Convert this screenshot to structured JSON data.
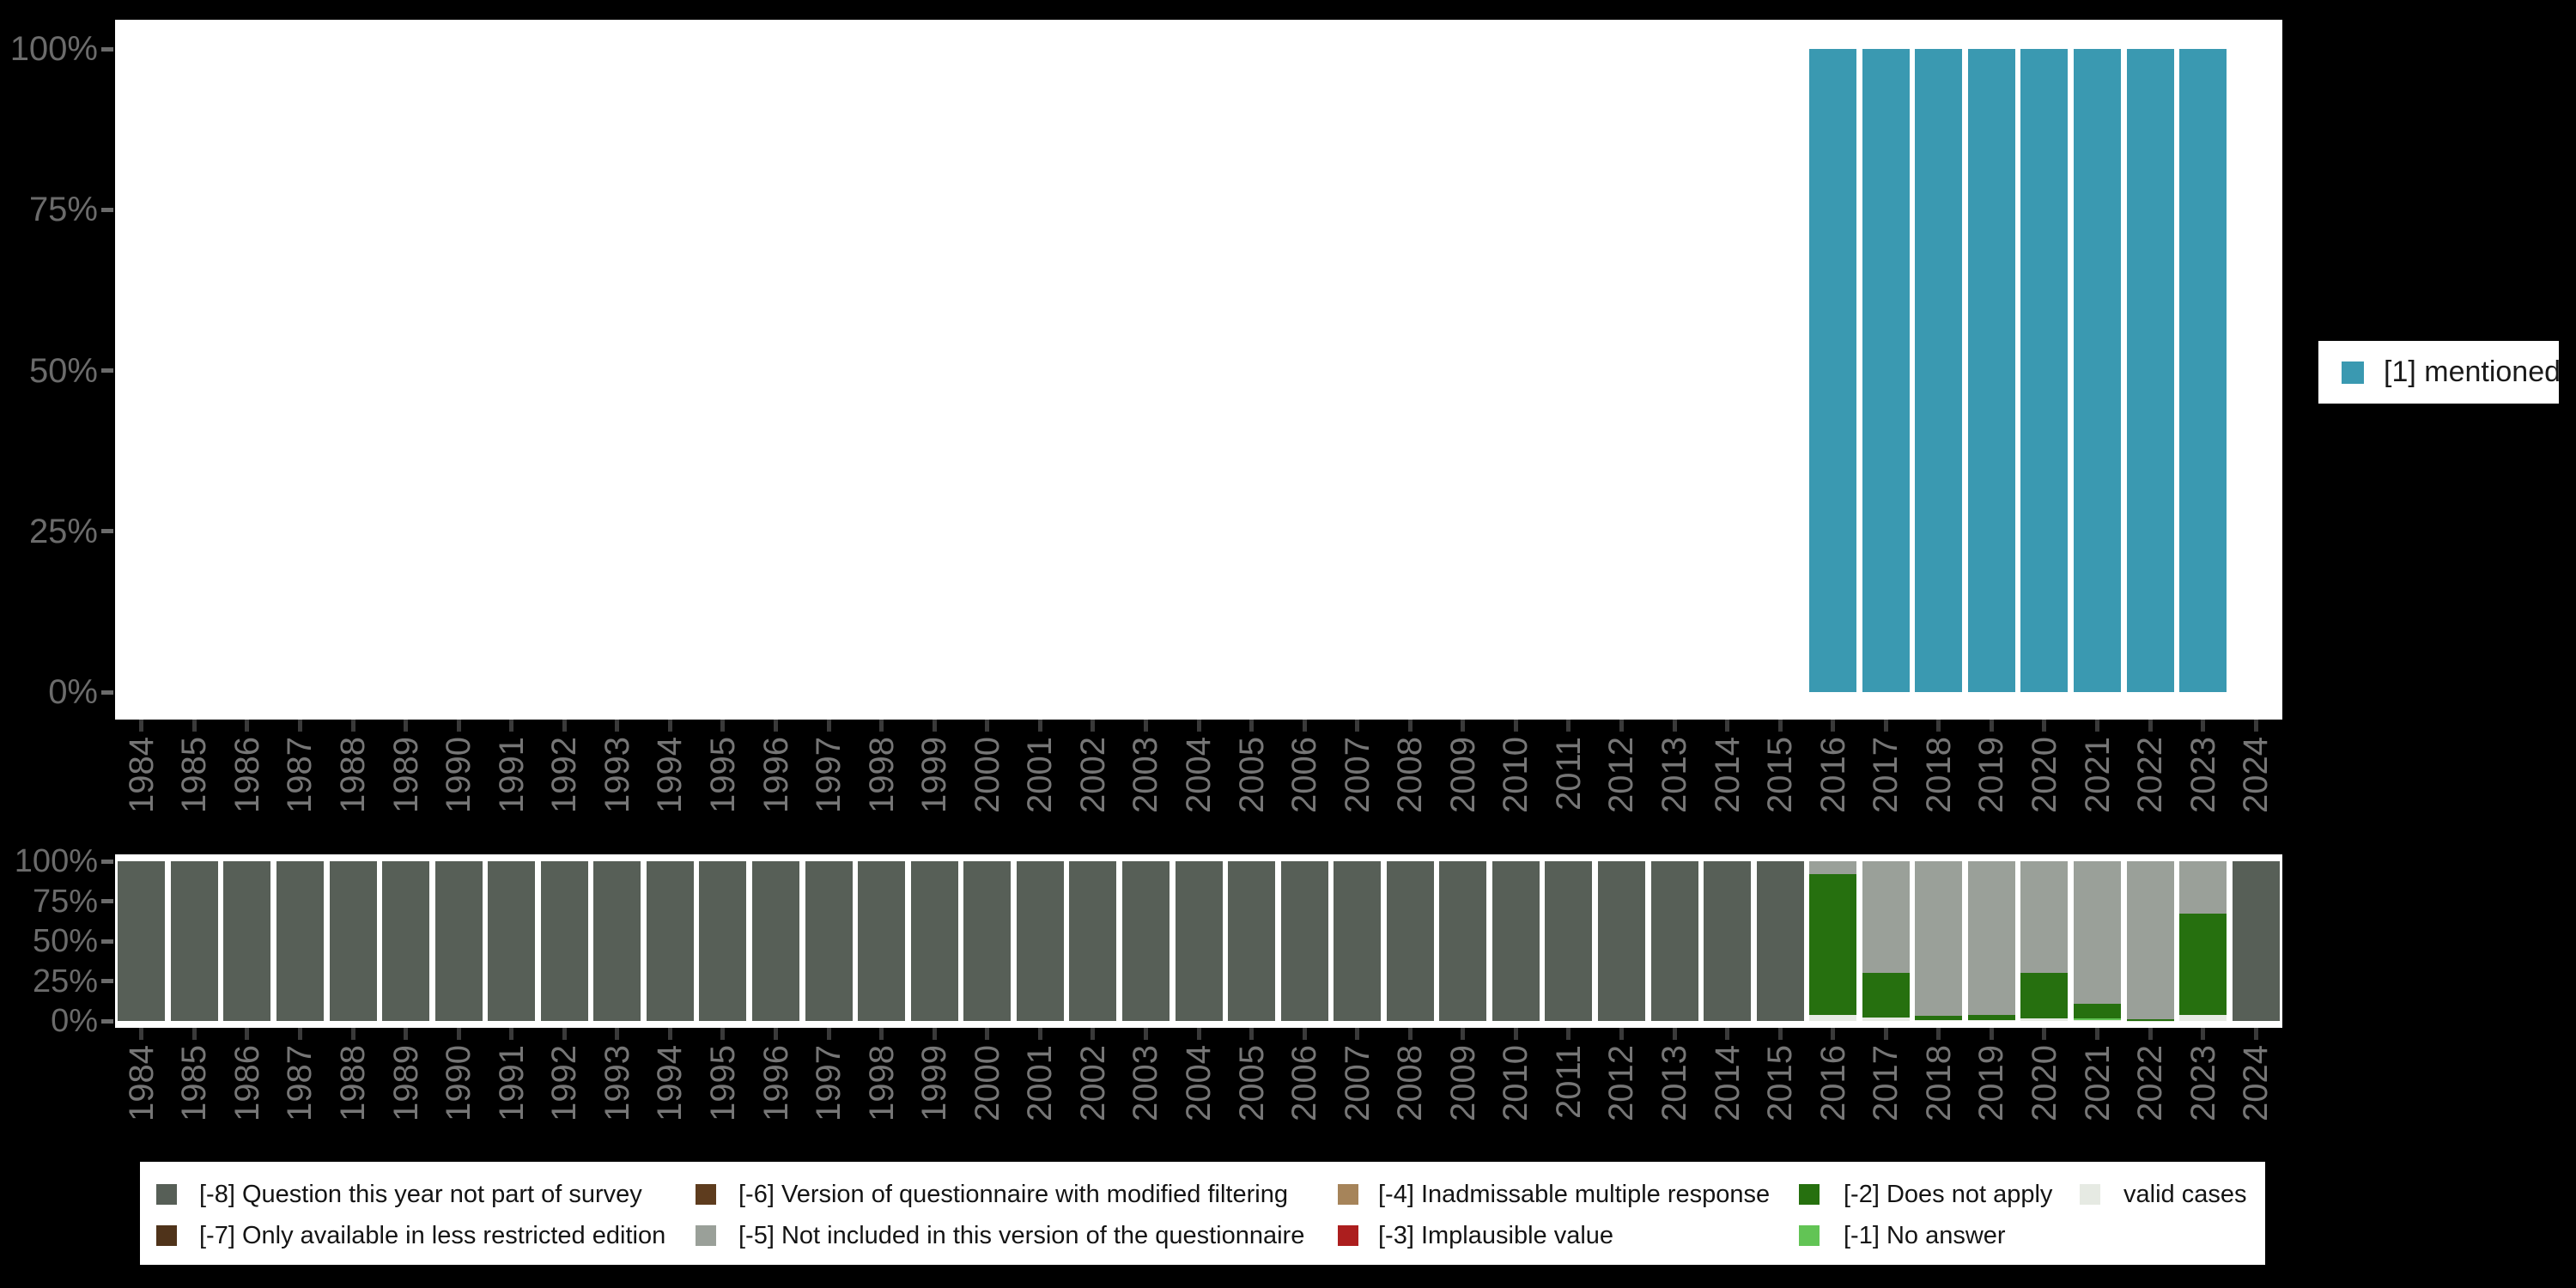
{
  "top_legend": {
    "label": "[1] mentioned",
    "color": "#3a99b1"
  },
  "colors": {
    "background": "#000000",
    "panel": "#ffffff",
    "mentioned": "#3a99b1",
    "not_part_of_survey": "#575f57",
    "less_restricted_edition": "#4f331a",
    "modified_filtering": "#5e3c1e",
    "not_in_questionnaire_version": "#9aa099",
    "inadmissable_multiple_response": "#a6845a",
    "implausible_value": "#ac1e1e",
    "does_not_apply": "#26700f",
    "no_answer": "#62c455",
    "valid_cases": "#e6eae3",
    "y_axis_text": "#6b6b6b",
    "x_axis_text": "#767676"
  },
  "missing_legend": {
    "items": [
      {
        "label": "[-8] Question this year not part of survey",
        "color": "#575f57"
      },
      {
        "label": "[-7] Only available in less restricted edition",
        "color": "#4f331a"
      },
      {
        "label": "[-6] Version of questionnaire with modified filtering",
        "color": "#5e3c1e"
      },
      {
        "label": "[-5] Not included in this version of the questionnaire",
        "color": "#9aa099"
      },
      {
        "label": "[-4] Inadmissable multiple response",
        "color": "#a6845a"
      },
      {
        "label": "[-3] Implausible value",
        "color": "#ac1e1e"
      },
      {
        "label": "[-2] Does not apply",
        "color": "#26700f"
      },
      {
        "label": "[-1] No answer",
        "color": "#62c455"
      },
      {
        "label": "valid cases",
        "color": "#e6eae3"
      }
    ]
  },
  "chart_data": [
    {
      "type": "bar",
      "title": "",
      "xlabel": "",
      "ylabel": "",
      "ylim": [
        0,
        100
      ],
      "grid": false,
      "legend_position": "right",
      "y_tick_labels": [
        "100%",
        "75%",
        "50%",
        "25%",
        "0%"
      ],
      "categories": [
        "1984",
        "1985",
        "1986",
        "1987",
        "1988",
        "1989",
        "1990",
        "1991",
        "1992",
        "1993",
        "1994",
        "1995",
        "1996",
        "1997",
        "1998",
        "1999",
        "2000",
        "2001",
        "2002",
        "2003",
        "2004",
        "2005",
        "2006",
        "2007",
        "2008",
        "2009",
        "2010",
        "2011",
        "2012",
        "2013",
        "2014",
        "2015",
        "2016",
        "2017",
        "2018",
        "2019",
        "2020",
        "2021",
        "2022",
        "2023",
        "2024"
      ],
      "series": [
        {
          "name": "[1] mentioned",
          "color": "#3a99b1",
          "values": [
            0,
            0,
            0,
            0,
            0,
            0,
            0,
            0,
            0,
            0,
            0,
            0,
            0,
            0,
            0,
            0,
            0,
            0,
            0,
            0,
            0,
            0,
            0,
            0,
            0,
            0,
            0,
            0,
            0,
            0,
            0,
            0,
            100,
            100,
            100,
            100,
            100,
            100,
            100,
            100,
            0
          ]
        }
      ]
    },
    {
      "type": "bar",
      "stacked": true,
      "title": "",
      "xlabel": "",
      "ylabel": "",
      "ylim": [
        0,
        100
      ],
      "grid": false,
      "y_tick_labels": [
        "100%",
        "75%",
        "50%",
        "25%",
        "0%"
      ],
      "categories": [
        "1984",
        "1985",
        "1986",
        "1987",
        "1988",
        "1989",
        "1990",
        "1991",
        "1992",
        "1993",
        "1994",
        "1995",
        "1996",
        "1997",
        "1998",
        "1999",
        "2000",
        "2001",
        "2002",
        "2003",
        "2004",
        "2005",
        "2006",
        "2007",
        "2008",
        "2009",
        "2010",
        "2011",
        "2012",
        "2013",
        "2014",
        "2015",
        "2016",
        "2017",
        "2018",
        "2019",
        "2020",
        "2021",
        "2022",
        "2023",
        "2024"
      ],
      "series": [
        {
          "name": "valid cases",
          "color": "#e6eae3",
          "values": [
            0,
            0,
            0,
            0,
            0,
            0,
            0,
            0,
            0,
            0,
            0,
            0,
            0,
            0,
            0,
            0,
            0,
            0,
            0,
            0,
            0,
            0,
            0,
            0,
            0,
            0,
            0,
            0,
            0,
            0,
            0,
            0,
            4,
            2,
            0.5,
            0.5,
            1.5,
            0.5,
            0.2,
            4,
            0
          ]
        },
        {
          "name": "[-1] No answer",
          "color": "#62c455",
          "values": [
            0,
            0,
            0,
            0,
            0,
            0,
            0,
            0,
            0,
            0,
            0,
            0,
            0,
            0,
            0,
            0,
            0,
            0,
            0,
            0,
            0,
            0,
            0,
            0,
            0,
            0,
            0,
            0,
            0,
            0,
            0,
            0,
            0,
            0,
            0,
            0,
            0,
            1,
            0,
            0,
            0
          ]
        },
        {
          "name": "[-2] Does not apply",
          "color": "#26700f",
          "values": [
            0,
            0,
            0,
            0,
            0,
            0,
            0,
            0,
            0,
            0,
            0,
            0,
            0,
            0,
            0,
            0,
            0,
            0,
            0,
            0,
            0,
            0,
            0,
            0,
            0,
            0,
            0,
            0,
            0,
            0,
            0,
            0,
            88,
            28,
            2.5,
            3.5,
            28.5,
            9,
            1,
            63,
            0
          ]
        },
        {
          "name": "[-5] Not included in this version of the questionnaire",
          "color": "#9aa099",
          "values": [
            0,
            0,
            0,
            0,
            0,
            0,
            0,
            0,
            0,
            0,
            0,
            0,
            0,
            0,
            0,
            0,
            0,
            0,
            0,
            0,
            0,
            0,
            0,
            0,
            0,
            0,
            0,
            0,
            0,
            0,
            0,
            0,
            8,
            70,
            97,
            96,
            70,
            89.5,
            98.8,
            33,
            0
          ]
        },
        {
          "name": "[-8] Question this year not part of survey",
          "color": "#575f57",
          "values": [
            100,
            100,
            100,
            100,
            100,
            100,
            100,
            100,
            100,
            100,
            100,
            100,
            100,
            100,
            100,
            100,
            100,
            100,
            100,
            100,
            100,
            100,
            100,
            100,
            100,
            100,
            100,
            100,
            100,
            100,
            100,
            100,
            0,
            0,
            0,
            0,
            0,
            0,
            0,
            0,
            100
          ]
        }
      ]
    }
  ]
}
